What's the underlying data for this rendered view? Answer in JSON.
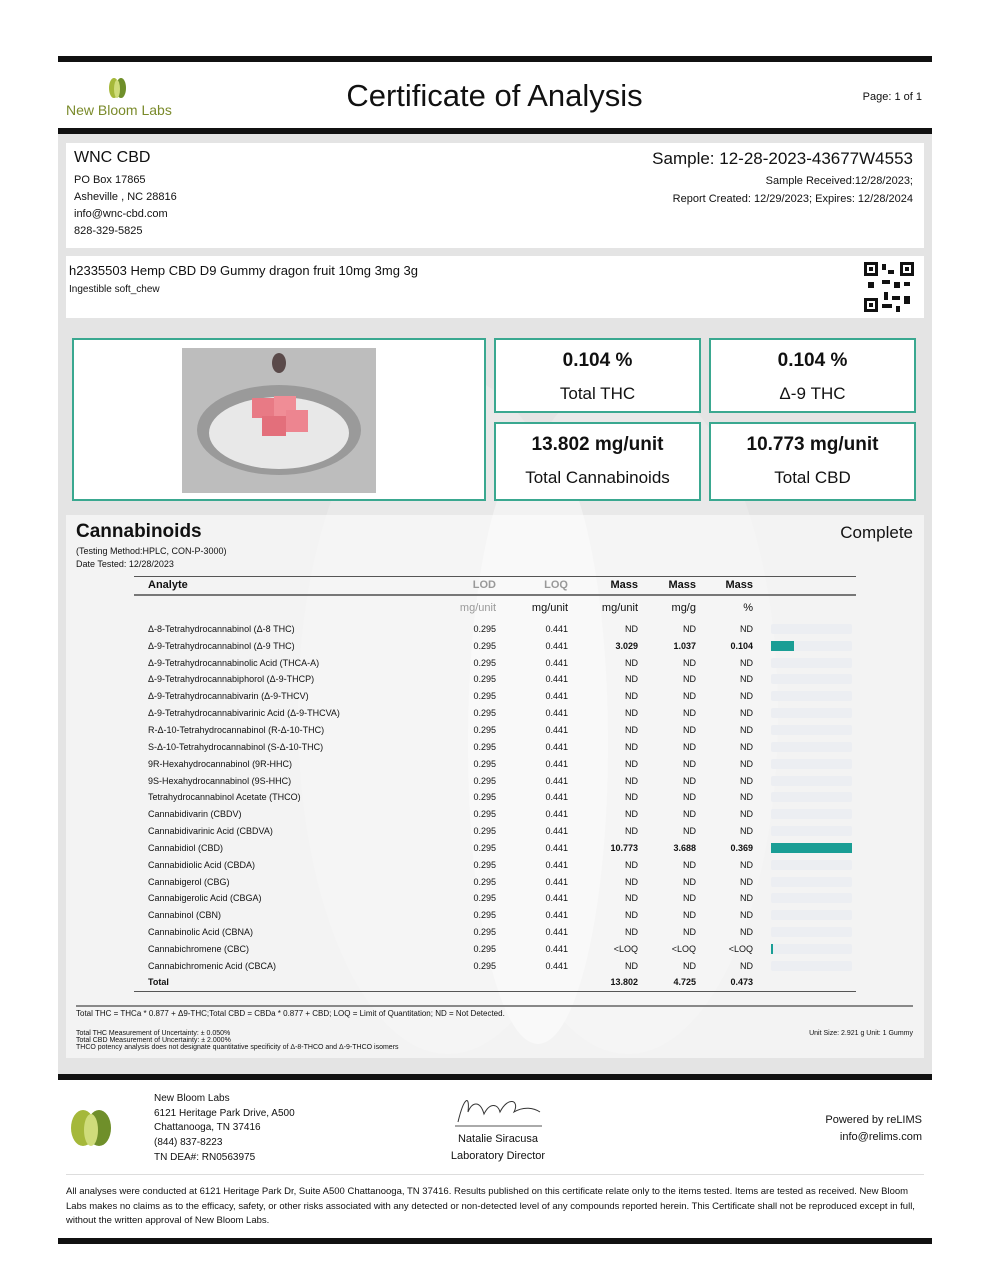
{
  "header": {
    "lab_name": "New Bloom Labs",
    "title": "Certificate of Analysis",
    "page": "Page: 1 of 1"
  },
  "client": {
    "name": "WNC CBD",
    "address1": "PO Box 17865",
    "address2": "Asheville , NC 28816",
    "email": "info@wnc-cbd.com",
    "phone": "828-329-5825"
  },
  "sample": {
    "id": "Sample: 12-28-2023-43677W4553",
    "received": "Sample Received:12/28/2023;",
    "report": "Report Created: 12/29/2023; Expires: 12/28/2024"
  },
  "product": {
    "name": "h2335503 Hemp CBD D9 Gummy dragon fruit 10mg 3mg 3g",
    "type": "Ingestible soft_chew"
  },
  "summary": [
    {
      "value": "0.104 %",
      "label": "Total THC"
    },
    {
      "value": "0.104 %",
      "label": "Δ-9 THC"
    },
    {
      "value": "13.802 mg/unit",
      "label": "Total Cannabinoids"
    },
    {
      "value": "10.773 mg/unit",
      "label": "Total CBD"
    }
  ],
  "cannabinoids": {
    "title": "Cannabinoids",
    "status": "Complete",
    "method": "(Testing Method:HPLC, CON-P-3000)",
    "date": "Date Tested: 12/28/2023",
    "headers": [
      "Analyte",
      "LOD",
      "LOQ",
      "Mass",
      "Mass",
      "Mass"
    ],
    "units": [
      "",
      "mg/unit",
      "mg/unit",
      "mg/unit",
      "mg/g",
      "%"
    ],
    "bar_color": "#1a9e95",
    "rows": [
      [
        "Δ-8-Tetrahydrocannabinol (Δ-8 THC)",
        "0.295",
        "0.441",
        "ND",
        "ND",
        "ND",
        0
      ],
      [
        "Δ-9-Tetrahydrocannabinol (Δ-9 THC)",
        "0.295",
        "0.441",
        "3.029",
        "1.037",
        "0.104",
        0.28
      ],
      [
        "Δ-9-Tetrahydrocannabinolic Acid (THCA-A)",
        "0.295",
        "0.441",
        "ND",
        "ND",
        "ND",
        0
      ],
      [
        "Δ-9-Tetrahydrocannabiphorol (Δ-9-THCP)",
        "0.295",
        "0.441",
        "ND",
        "ND",
        "ND",
        0
      ],
      [
        "Δ-9-Tetrahydrocannabivarin (Δ-9-THCV)",
        "0.295",
        "0.441",
        "ND",
        "ND",
        "ND",
        0
      ],
      [
        "Δ-9-Tetrahydrocannabivarinic Acid (Δ-9-THCVA)",
        "0.295",
        "0.441",
        "ND",
        "ND",
        "ND",
        0
      ],
      [
        "R-Δ-10-Tetrahydrocannabinol (R-Δ-10-THC)",
        "0.295",
        "0.441",
        "ND",
        "ND",
        "ND",
        0
      ],
      [
        "S-Δ-10-Tetrahydrocannabinol (S-Δ-10-THC)",
        "0.295",
        "0.441",
        "ND",
        "ND",
        "ND",
        0
      ],
      [
        "9R-Hexahydrocannabinol (9R-HHC)",
        "0.295",
        "0.441",
        "ND",
        "ND",
        "ND",
        0
      ],
      [
        "9S-Hexahydrocannabinol (9S-HHC)",
        "0.295",
        "0.441",
        "ND",
        "ND",
        "ND",
        0
      ],
      [
        "Tetrahydrocannabinol Acetate (THCO)",
        "0.295",
        "0.441",
        "ND",
        "ND",
        "ND",
        0
      ],
      [
        "Cannabidivarin (CBDV)",
        "0.295",
        "0.441",
        "ND",
        "ND",
        "ND",
        0
      ],
      [
        "Cannabidivarinic Acid (CBDVA)",
        "0.295",
        "0.441",
        "ND",
        "ND",
        "ND",
        0
      ],
      [
        "Cannabidiol (CBD)",
        "0.295",
        "0.441",
        "10.773",
        "3.688",
        "0.369",
        1
      ],
      [
        "Cannabidiolic Acid (CBDA)",
        "0.295",
        "0.441",
        "ND",
        "ND",
        "ND",
        0
      ],
      [
        "Cannabigerol (CBG)",
        "0.295",
        "0.441",
        "ND",
        "ND",
        "ND",
        0
      ],
      [
        "Cannabigerolic Acid (CBGA)",
        "0.295",
        "0.441",
        "ND",
        "ND",
        "ND",
        0
      ],
      [
        "Cannabinol (CBN)",
        "0.295",
        "0.441",
        "ND",
        "ND",
        "ND",
        0
      ],
      [
        "Cannabinolic Acid (CBNA)",
        "0.295",
        "0.441",
        "ND",
        "ND",
        "ND",
        0
      ],
      [
        "Cannabichromene (CBC)",
        "0.295",
        "0.441",
        "<LOQ",
        "<LOQ",
        "<LOQ",
        0.03
      ],
      [
        "Cannabichromenic Acid (CBCA)",
        "0.295",
        "0.441",
        "ND",
        "ND",
        "ND",
        0
      ]
    ],
    "total": [
      "Total",
      "",
      "",
      "13.802",
      "4.725",
      "0.473"
    ],
    "formula": "Total THC = THCa * 0.877 + Δ9-THC;Total CBD = CBDa * 0.877 + CBD; LOQ = Limit of Quantitation; ND = Not Detected.",
    "notes": [
      "Total THC Measurement of Uncertainty: ± 0.050%",
      "Total CBD Measurement of Uncertainty: ± 2.000%",
      "THCO potency analysis does not designate quantitative specificity of Δ-8-THCO and Δ-9-THCO isomers"
    ],
    "unit_size": "Unit Size: 2.921 g Unit: 1 Gummy"
  },
  "footer": {
    "lab": [
      "New Bloom Labs",
      "6121 Heritage Park Drive, A500",
      "Chattanooga, TN 37416",
      "(844) 837-8223",
      "TN DEA#: RN0563975"
    ],
    "signer": "Natalie Siracusa",
    "signer_title": "Laboratory Director",
    "powered": "Powered by reLIMS",
    "powered_email": "info@relims.com",
    "disclaimer": "All analyses were conducted at 6121 Heritage Park Dr, Suite A500 Chattanooga, TN 37416. Results published on this certificate relate only to the items tested. Items are tested as received. New Bloom Labs makes no claims as to the efficacy, safety, or other risks associated with any detected or non-detected level of any compounds reported herein. This Certificate shall not be reproduced except in full, without the written approval of New Bloom Labs."
  }
}
